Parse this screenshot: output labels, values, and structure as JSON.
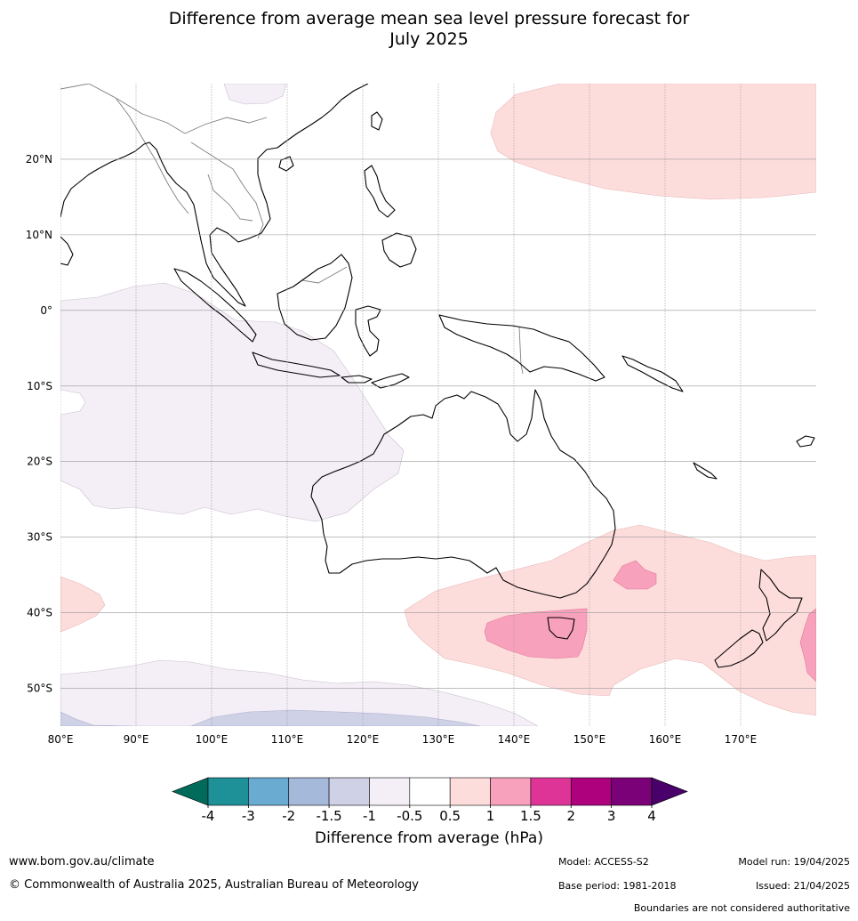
{
  "title": {
    "line1": "Difference from average mean sea level pressure forecast for",
    "line2": "July 2025"
  },
  "map": {
    "lat_labels": [
      "20°N",
      "10°N",
      "0°",
      "10°S",
      "20°S",
      "30°S",
      "40°S",
      "50°S"
    ],
    "lon_labels": [
      "80°E",
      "90°E",
      "100°E",
      "110°E",
      "120°E",
      "130°E",
      "140°E",
      "150°E",
      "160°E",
      "170°E"
    ],
    "extent": {
      "lon_min": 80,
      "lon_max": 180,
      "lat_min": -55,
      "lat_max": 30
    },
    "gridlines": true,
    "colors": {
      "land_outline": "#000000",
      "border_outline": "#808080",
      "gridline": "#999999",
      "weak_negative": "#f4eef6",
      "moderate_negative": "#cfd1e6",
      "weak_positive": "#fddddc",
      "moderate_positive": "#f8a1bc"
    }
  },
  "colorbar": {
    "ticks": [
      "-4",
      "-3",
      "-2",
      "-1.5",
      "-1",
      "-0.5",
      "0.5",
      "1",
      "1.5",
      "2",
      "3",
      "4"
    ],
    "colors": [
      "#006b5a",
      "#1e9098",
      "#6aabd2",
      "#a5b9db",
      "#cfd1e6",
      "#f4eef6",
      "#ffffff",
      "#fddddc",
      "#f8a1bc",
      "#de3497",
      "#ad017e",
      "#7a0177",
      "#49006a"
    ],
    "label": "Difference from average (hPa)"
  },
  "footer": {
    "website": "www.bom.gov.au/climate",
    "copyright": "© Commonwealth of Australia 2025, Australian Bureau of Meteorology",
    "model": "Model: ACCESS-S2",
    "base_period": "Base period: 1981-2018",
    "model_run": "Model run: 19/04/2025",
    "issued": "Issued: 21/04/2025",
    "disclaimer": "Boundaries are not considered authoritative"
  }
}
